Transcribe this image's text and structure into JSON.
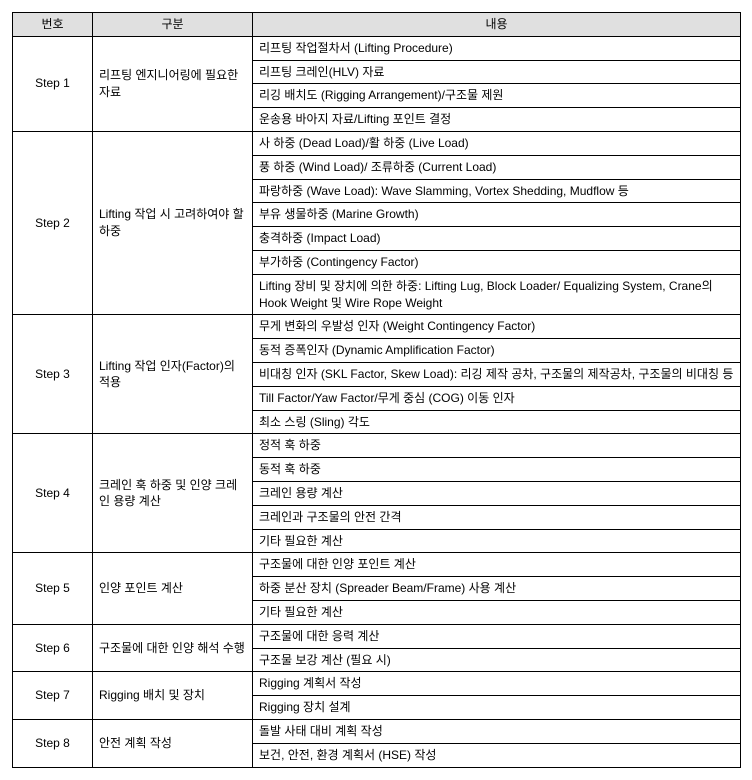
{
  "headers": {
    "col1": "번호",
    "col2": "구분",
    "col3": "내용"
  },
  "steps": [
    {
      "step": "Step 1",
      "category": "리프팅 엔지니어링에 필요한 자료",
      "contents": [
        "리프팅 작업절차서 (Lifting Procedure)",
        "리프팅 크레인(HLV) 자료",
        "리깅 배치도 (Rigging Arrangement)/구조물 제원",
        "운송용 바아지 자료/Lifting 포인트 결정"
      ]
    },
    {
      "step": "Step 2",
      "category": "Lifting 작업 시 고려하여야 할 하중",
      "contents": [
        "사 하중 (Dead Load)/활 하중 (Live Load)",
        "풍 하중 (Wind Load)/ 조류하중 (Current Load)",
        "파랑하중 (Wave Load): Wave Slamming, Vortex Shedding, Mudflow 등",
        "부유 생물하중 (Marine Growth)",
        "충격하중 (Impact Load)",
        "부가하중 (Contingency Factor)",
        "Lifting 장비 및 장치에 의한 하중: Lifting Lug, Block Loader/ Equalizing System, Crane의 Hook Weight 및 Wire Rope Weight"
      ]
    },
    {
      "step": "Step 3",
      "category": "Lifting 작업 인자(Factor)의 적용",
      "contents": [
        "무게 변화의 우발성 인자 (Weight Contingency Factor)",
        "동적 증폭인자 (Dynamic Amplification Factor)",
        "비대칭 인자 (SKL Factor, Skew Load): 리깅 제작 공차, 구조물의 제작공차, 구조물의 비대칭 등",
        "Till Factor/Yaw Factor/무게 중심 (COG) 이동 인자",
        "최소 스링 (Sling) 각도"
      ]
    },
    {
      "step": "Step 4",
      "category": "크레인 훅 하중 및 인양 크레인 용량 계산",
      "contents": [
        "정적 훅 하중",
        "동적 훅 하중",
        "크레인 용량 계산",
        "크레인과 구조물의  안전 간격",
        "기타 필요한 계산"
      ]
    },
    {
      "step": "Step 5",
      "category": "인양 포인트 계산",
      "contents": [
        "구조물에 대한 인양 포인트 계산",
        "하중 분산 장치 (Spreader Beam/Frame) 사용 계산",
        "기타 필요한 계산"
      ]
    },
    {
      "step": "Step 6",
      "category": "구조물에 대한 인양 해석 수행",
      "contents": [
        "구조물에 대한 응력 계산",
        "구조물 보강 계산 (필요 시)"
      ]
    },
    {
      "step": "Step 7",
      "category": "Rigging 배치 및 장치",
      "contents": [
        "Rigging 계획서 작성",
        "Rigging 장치 설계"
      ]
    },
    {
      "step": "Step 8",
      "category": "안전 계획 작성",
      "contents": [
        "돌발 사태 대비 계획  작성",
        "보건, 안전, 환경 계획서 (HSE) 작성"
      ]
    }
  ]
}
